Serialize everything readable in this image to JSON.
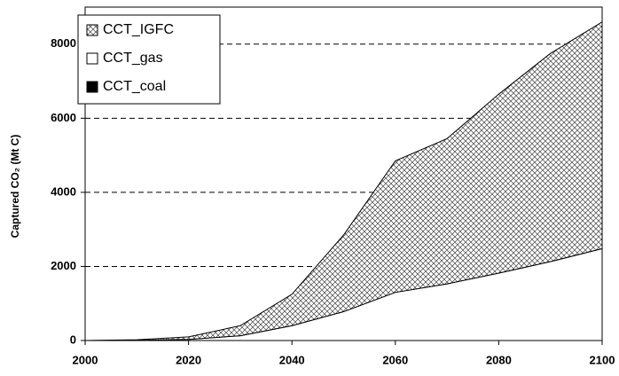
{
  "chart_data": {
    "type": "stacked_area",
    "y_label": "Captured CO₂ (Mt C)",
    "x": [
      2000,
      2010,
      2020,
      2030,
      2040,
      2050,
      2060,
      2070,
      2080,
      2090,
      2100
    ],
    "series": [
      {
        "name": "CCT_coal",
        "color": "#000000",
        "values": [
          0,
          0,
          0,
          0,
          0,
          0,
          0,
          0,
          0,
          0,
          0
        ]
      },
      {
        "name": "CCT_gas",
        "color": "#ffffff",
        "values": [
          0,
          5,
          30,
          130,
          400,
          780,
          1300,
          1530,
          1820,
          2130,
          2480
        ]
      },
      {
        "name": "CCT_IGFC",
        "color": "#000000",
        "hatch": "crosshatch",
        "values": [
          0,
          15,
          70,
          270,
          850,
          2070,
          3550,
          3920,
          4830,
          5620,
          6120
        ]
      }
    ],
    "xlim": [
      2000,
      2100
    ],
    "xticks": [
      2000,
      2020,
      2040,
      2060,
      2080,
      2100
    ],
    "ylim": [
      0,
      9000
    ],
    "yticks": [
      0,
      2000,
      4000,
      6000,
      8000
    ],
    "grid": true,
    "legend_position": "upper-left"
  }
}
